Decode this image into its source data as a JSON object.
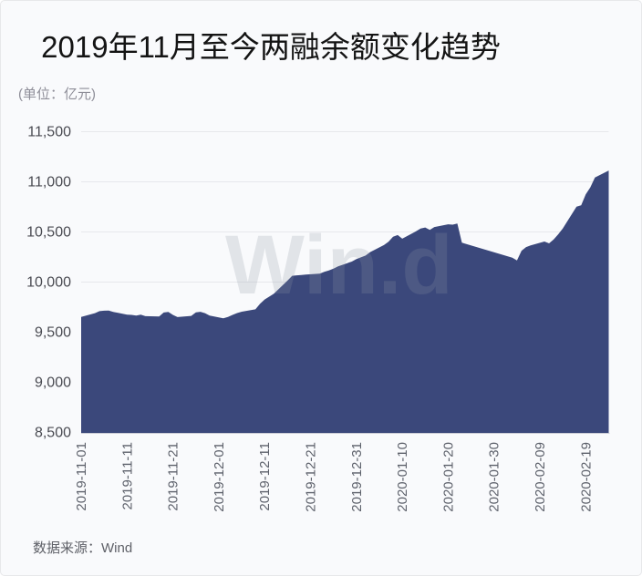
{
  "card": {
    "title": "2019年11月至今两融余额变化趋势",
    "subtitle": "(单位：亿元)",
    "source_label": "数据来源：Wind",
    "watermark": "Win.d"
  },
  "colors": {
    "area_fill": "#3b487b",
    "card_background": "#f9fafc",
    "card_border": "#e7e8ea",
    "gridline": "#e7e8ec",
    "axis_line": "#ccced6",
    "title_text": "#141414",
    "subtitle_text": "#8e8e98",
    "y_tick_text": "#4a4b52",
    "x_tick_text": "#5e626c",
    "source_text": "#5f6168",
    "watermark_text": "rgba(143,148,163,0.22)"
  },
  "chart_data": {
    "type": "area",
    "title": "2019年11月至今两融余额变化趋势",
    "unit": "亿元",
    "xlabel": "",
    "ylabel": "",
    "ylim": [
      8500,
      11500
    ],
    "y_ticks": [
      8500,
      9000,
      9500,
      10000,
      10500,
      11000,
      11500
    ],
    "x_tick_labels": [
      "2019-11-01",
      "2019-11-11",
      "2019-11-21",
      "2019-12-01",
      "2019-12-11",
      "2019-12-21",
      "2019-12-31",
      "2020-01-10",
      "2020-01-20",
      "2020-01-30",
      "2020-02-09",
      "2020-02-19"
    ],
    "grid": true,
    "legend": false,
    "series": [
      {
        "name": "两融余额",
        "points": [
          [
            "2019-11-01",
            9647
          ],
          [
            "2019-11-04",
            9685
          ],
          [
            "2019-11-05",
            9705
          ],
          [
            "2019-11-06",
            9710
          ],
          [
            "2019-11-07",
            9712
          ],
          [
            "2019-11-08",
            9698
          ],
          [
            "2019-11-11",
            9671
          ],
          [
            "2019-11-12",
            9668
          ],
          [
            "2019-11-13",
            9662
          ],
          [
            "2019-11-14",
            9671
          ],
          [
            "2019-11-15",
            9655
          ],
          [
            "2019-11-18",
            9652
          ],
          [
            "2019-11-19",
            9692
          ],
          [
            "2019-11-20",
            9698
          ],
          [
            "2019-11-21",
            9668
          ],
          [
            "2019-11-22",
            9646
          ],
          [
            "2019-11-25",
            9658
          ],
          [
            "2019-11-26",
            9694
          ],
          [
            "2019-11-27",
            9699
          ],
          [
            "2019-11-28",
            9685
          ],
          [
            "2019-11-29",
            9662
          ],
          [
            "2019-12-02",
            9634
          ],
          [
            "2019-12-03",
            9648
          ],
          [
            "2019-12-04",
            9668
          ],
          [
            "2019-12-05",
            9686
          ],
          [
            "2019-12-06",
            9700
          ],
          [
            "2019-12-09",
            9724
          ],
          [
            "2019-12-10",
            9780
          ],
          [
            "2019-12-11",
            9822
          ],
          [
            "2019-12-12",
            9850
          ],
          [
            "2019-12-13",
            9880
          ],
          [
            "2019-12-16",
            10012
          ],
          [
            "2019-12-17",
            10058
          ],
          [
            "2019-12-18",
            10063
          ],
          [
            "2019-12-19",
            10066
          ],
          [
            "2019-12-20",
            10070
          ],
          [
            "2019-12-23",
            10080
          ],
          [
            "2019-12-24",
            10098
          ],
          [
            "2019-12-25",
            10112
          ],
          [
            "2019-12-26",
            10130
          ],
          [
            "2019-12-27",
            10152
          ],
          [
            "2019-12-30",
            10200
          ],
          [
            "2019-12-31",
            10225
          ],
          [
            "2020-01-02",
            10260
          ],
          [
            "2020-01-03",
            10295
          ],
          [
            "2020-01-06",
            10365
          ],
          [
            "2020-01-07",
            10398
          ],
          [
            "2020-01-08",
            10448
          ],
          [
            "2020-01-09",
            10465
          ],
          [
            "2020-01-10",
            10428
          ],
          [
            "2020-01-13",
            10502
          ],
          [
            "2020-01-14",
            10530
          ],
          [
            "2020-01-15",
            10540
          ],
          [
            "2020-01-16",
            10515
          ],
          [
            "2020-01-17",
            10545
          ],
          [
            "2020-01-20",
            10572
          ],
          [
            "2020-01-21",
            10568
          ],
          [
            "2020-01-22",
            10580
          ],
          [
            "2020-01-23",
            10388
          ],
          [
            "2020-02-03",
            10238
          ],
          [
            "2020-02-04",
            10212
          ],
          [
            "2020-02-05",
            10308
          ],
          [
            "2020-02-06",
            10345
          ],
          [
            "2020-02-07",
            10362
          ],
          [
            "2020-02-10",
            10400
          ],
          [
            "2020-02-11",
            10382
          ],
          [
            "2020-02-12",
            10420
          ],
          [
            "2020-02-13",
            10472
          ],
          [
            "2020-02-14",
            10530
          ],
          [
            "2020-02-17",
            10748
          ],
          [
            "2020-02-18",
            10762
          ],
          [
            "2020-02-19",
            10870
          ],
          [
            "2020-02-20",
            10940
          ],
          [
            "2020-02-21",
            11038
          ],
          [
            "2020-02-24",
            11108
          ]
        ]
      }
    ]
  }
}
